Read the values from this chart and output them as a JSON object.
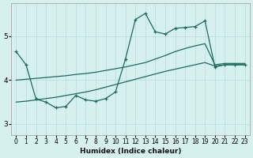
{
  "xlabel": "Humidex (Indice chaleur)",
  "bg_color": "#d6f0f0",
  "line_color": "#1a6b5a",
  "grid_color": "#b8dada",
  "xlim": [
    -0.5,
    23.5
  ],
  "ylim": [
    2.75,
    5.75
  ],
  "yticks": [
    3,
    4,
    5
  ],
  "xticks": [
    0,
    1,
    2,
    3,
    4,
    5,
    6,
    7,
    8,
    9,
    10,
    11,
    12,
    13,
    14,
    15,
    16,
    17,
    18,
    19,
    20,
    21,
    22,
    23
  ],
  "line_jagged": {
    "x": [
      0,
      1,
      2,
      3,
      4,
      5,
      6,
      7,
      8,
      9,
      10,
      11,
      12,
      13,
      14,
      15,
      16,
      17,
      18,
      19,
      20,
      21,
      22,
      23
    ],
    "y": [
      4.65,
      4.35,
      3.57,
      3.5,
      3.37,
      3.4,
      3.65,
      3.55,
      3.52,
      3.58,
      3.73,
      4.48,
      5.38,
      5.52,
      5.1,
      5.05,
      5.18,
      5.2,
      5.22,
      5.35,
      4.3,
      4.35,
      4.35,
      4.35
    ]
  },
  "line_smooth_low": {
    "x": [
      0,
      1,
      2,
      3,
      4,
      5,
      6,
      7,
      8,
      9,
      10,
      11,
      12,
      13,
      14,
      15,
      16,
      17,
      18,
      19,
      20,
      21,
      22,
      23
    ],
    "y": [
      3.5,
      3.52,
      3.55,
      3.58,
      3.61,
      3.65,
      3.69,
      3.73,
      3.78,
      3.84,
      3.9,
      3.96,
      4.02,
      4.08,
      4.14,
      4.2,
      4.25,
      4.3,
      4.35,
      4.4,
      4.32,
      4.35,
      4.35,
      4.35
    ]
  },
  "line_mid": {
    "x": [
      0,
      1,
      2,
      3,
      4,
      5,
      6,
      7,
      8,
      9,
      10,
      11,
      12,
      13,
      14,
      15,
      16,
      17,
      18,
      19,
      20,
      21,
      22,
      23
    ],
    "y": [
      4.0,
      4.02,
      4.04,
      4.06,
      4.08,
      4.1,
      4.13,
      4.15,
      4.18,
      4.22,
      4.26,
      4.3,
      4.35,
      4.4,
      4.48,
      4.56,
      4.65,
      4.72,
      4.78,
      4.83,
      4.35,
      4.38,
      4.38,
      4.38
    ]
  }
}
